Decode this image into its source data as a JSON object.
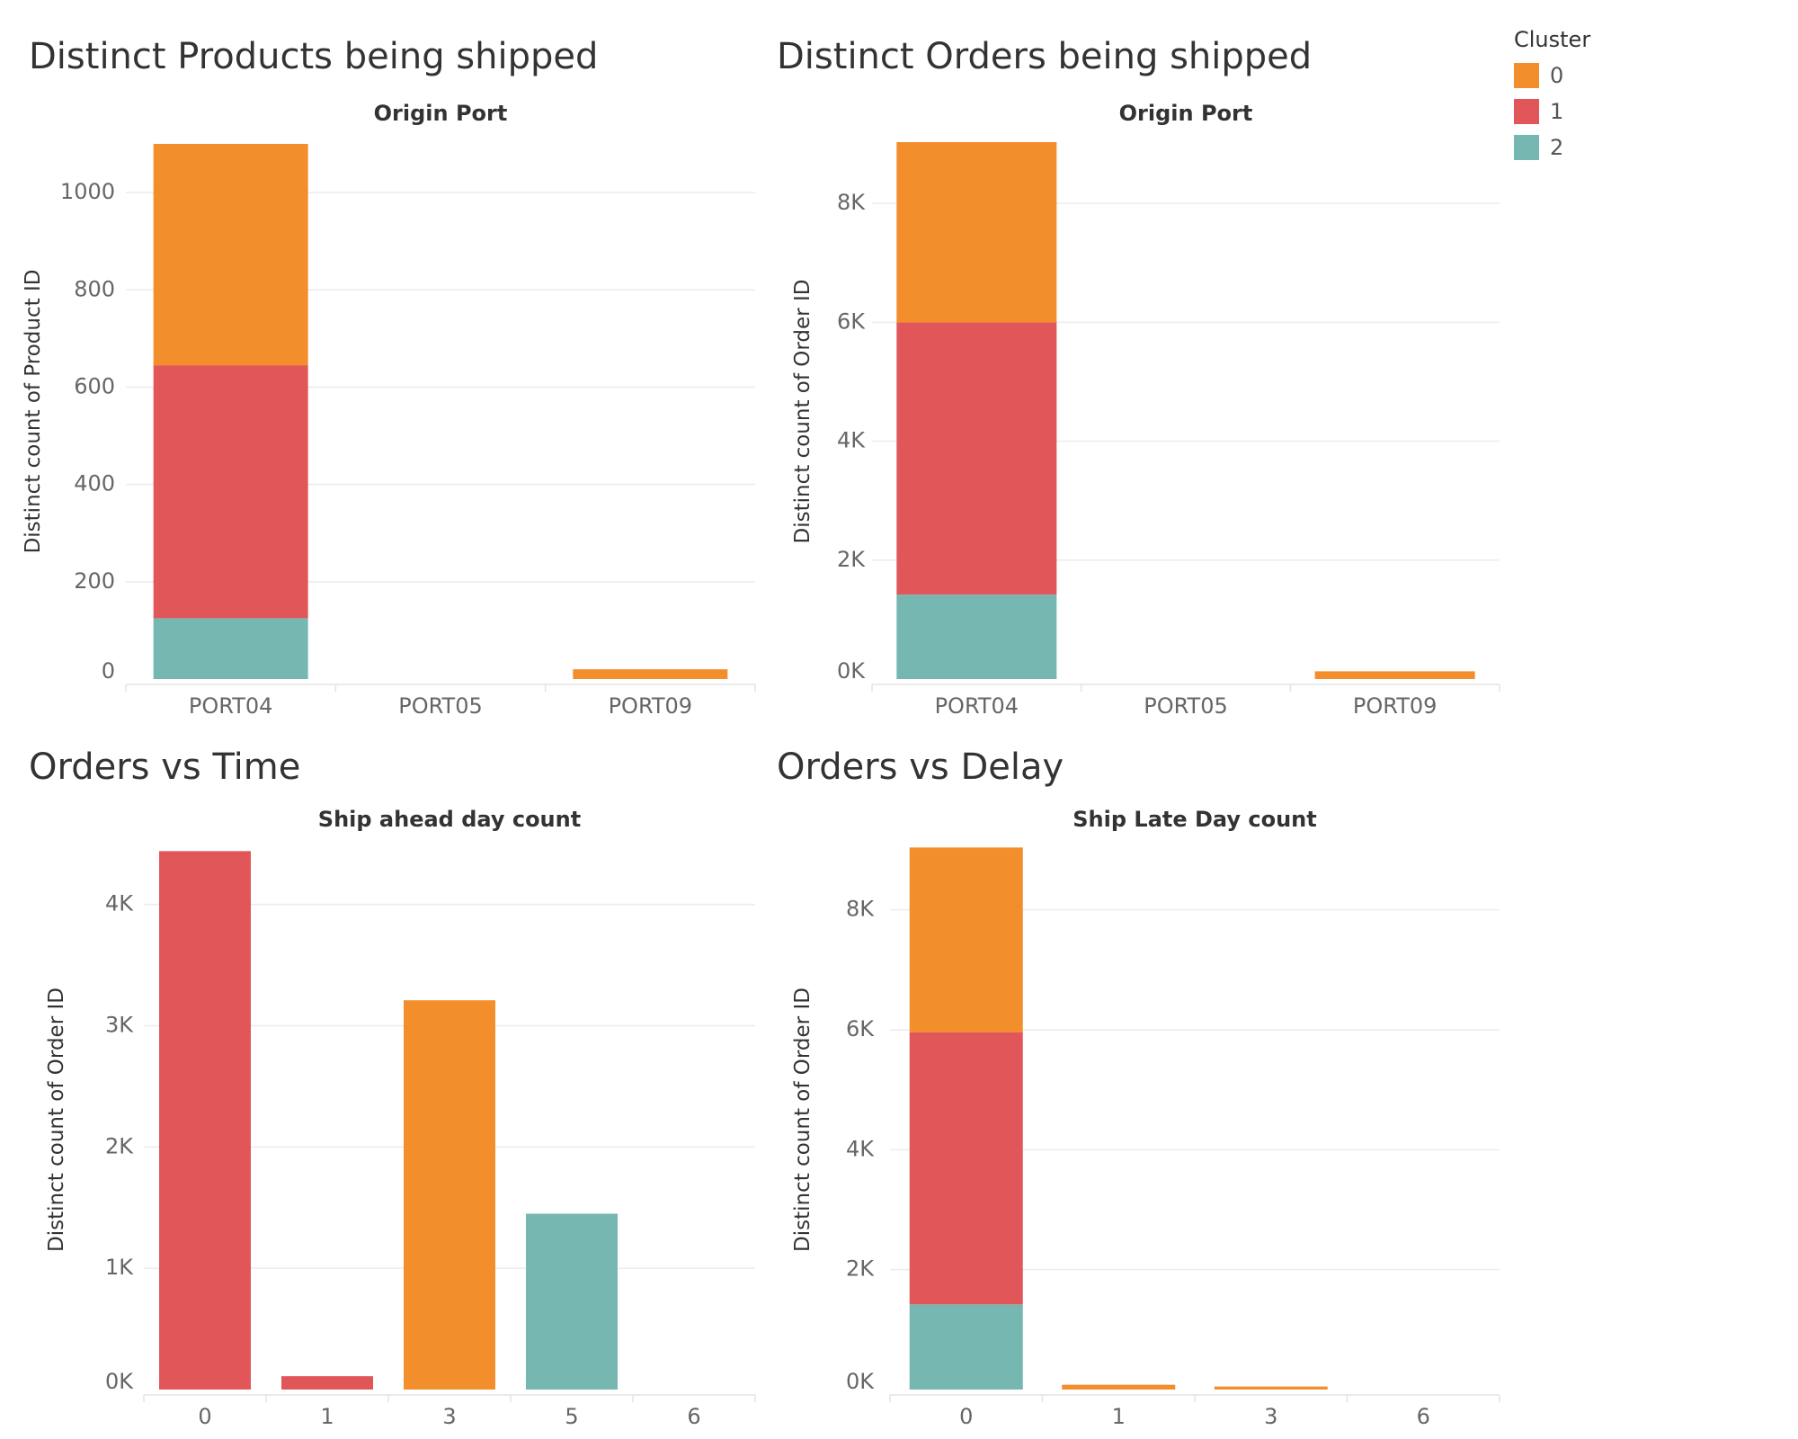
{
  "colors": {
    "0": "#f28e2b",
    "1": "#e15759",
    "2": "#76b7b2"
  },
  "legend": {
    "title": "Cluster",
    "items": [
      {
        "key": "0",
        "label": "0"
      },
      {
        "key": "1",
        "label": "1"
      },
      {
        "key": "2",
        "label": "2"
      }
    ]
  },
  "chart_data": [
    {
      "type": "bar",
      "stacked": true,
      "title": "Distinct Products being shipped",
      "xlabel": "Origin Port",
      "ylabel": "Distinct count of Product ID",
      "categories": [
        "PORT04",
        "PORT05",
        "PORT09"
      ],
      "ylim": [
        0,
        1100
      ],
      "yticks": [
        0,
        200,
        400,
        600,
        800,
        1000
      ],
      "ytick_labels": [
        "0",
        "200",
        "400",
        "600",
        "800",
        "1000"
      ],
      "series": [
        {
          "name": "2",
          "values": [
            125,
            0,
            0
          ]
        },
        {
          "name": "1",
          "values": [
            520,
            0,
            0
          ]
        },
        {
          "name": "0",
          "values": [
            455,
            0,
            20
          ]
        }
      ]
    },
    {
      "type": "bar",
      "stacked": true,
      "title": "Distinct Orders being shipped",
      "xlabel": "Origin Port",
      "ylabel": "Distinct count of Order ID",
      "categories": [
        "PORT04",
        "PORT05",
        "PORT09"
      ],
      "ylim": [
        0,
        9000
      ],
      "yticks": [
        0,
        2000,
        4000,
        6000,
        8000
      ],
      "ytick_labels": [
        "0K",
        "2K",
        "4K",
        "6K",
        "8K"
      ],
      "series": [
        {
          "name": "2",
          "values": [
            1420,
            0,
            0
          ]
        },
        {
          "name": "1",
          "values": [
            4580,
            0,
            0
          ]
        },
        {
          "name": "0",
          "values": [
            3030,
            0,
            130
          ]
        }
      ]
    },
    {
      "type": "bar",
      "stacked": true,
      "title": "Orders vs Time",
      "xlabel": "Ship ahead day count",
      "ylabel": "Distinct count of Order ID",
      "categories": [
        "0",
        "1",
        "3",
        "5",
        "6"
      ],
      "ylim": [
        0,
        4450
      ],
      "yticks": [
        0,
        1000,
        2000,
        3000,
        4000
      ],
      "ytick_labels": [
        "0K",
        "1K",
        "2K",
        "3K",
        "4K"
      ],
      "series": [
        {
          "name": "2",
          "values": [
            0,
            0,
            0,
            1450,
            0
          ]
        },
        {
          "name": "1",
          "values": [
            4440,
            110,
            0,
            0,
            0
          ]
        },
        {
          "name": "0",
          "values": [
            0,
            0,
            3210,
            0,
            0
          ]
        }
      ]
    },
    {
      "type": "bar",
      "stacked": true,
      "title": "Orders vs Delay",
      "xlabel": "Ship Late Day count",
      "ylabel": "Distinct count of Order ID",
      "categories": [
        "0",
        "1",
        "3",
        "6"
      ],
      "ylim": [
        0,
        9000
      ],
      "yticks": [
        0,
        2000,
        4000,
        6000,
        8000
      ],
      "ytick_labels": [
        "0K",
        "2K",
        "4K",
        "6K",
        "8K"
      ],
      "series": [
        {
          "name": "2",
          "values": [
            1420,
            0,
            0,
            0
          ]
        },
        {
          "name": "1",
          "values": [
            4540,
            0,
            0,
            0
          ]
        },
        {
          "name": "0",
          "values": [
            3080,
            80,
            50,
            0
          ]
        }
      ]
    }
  ]
}
